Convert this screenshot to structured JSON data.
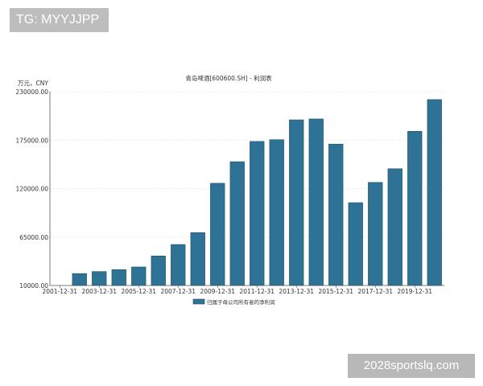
{
  "overlay": {
    "tag_text": "TG: MYYJJPP",
    "watermark_text": "2028sportslq.com"
  },
  "chart_data": {
    "type": "bar",
    "title": "青岛啤酒[600600.SH] - 利润表",
    "unit_label": "万元，CNY",
    "ylim": [
      10000,
      230000
    ],
    "yticks": [
      10000,
      65000,
      120000,
      175000,
      230000
    ],
    "ytick_labels": [
      "10000.00",
      "65000.00",
      "120000.00",
      "175000.00",
      "230000.00"
    ],
    "xtick_labels": [
      "2001-12-31",
      "2003-12-31",
      "2005-12-31",
      "2007-12-31",
      "2009-12-31",
      "2011-12-31",
      "2013-12-31",
      "2015-12-31",
      "2017-12-31",
      "2019-12-31"
    ],
    "categories": [
      "2001-12-31",
      "2002-12-31",
      "2003-12-31",
      "2004-12-31",
      "2005-12-31",
      "2006-12-31",
      "2007-12-31",
      "2008-12-31",
      "2009-12-31",
      "2010-12-31",
      "2011-12-31",
      "2012-12-31",
      "2013-12-31",
      "2014-12-31",
      "2015-12-31",
      "2016-12-31",
      "2017-12-31",
      "2018-12-31",
      "2019-12-31",
      "2020-12-31"
    ],
    "series": [
      {
        "name": "归属于母公司所有者的净利润",
        "color": "#2e7395",
        "values": [
          null,
          23500,
          25800,
          28000,
          31000,
          43500,
          56500,
          70000,
          126000,
          150500,
          173500,
          175500,
          198000,
          199000,
          170500,
          104000,
          127000,
          142500,
          185000,
          221000
        ]
      }
    ],
    "grid": true,
    "legend_position": "bottom-center"
  }
}
